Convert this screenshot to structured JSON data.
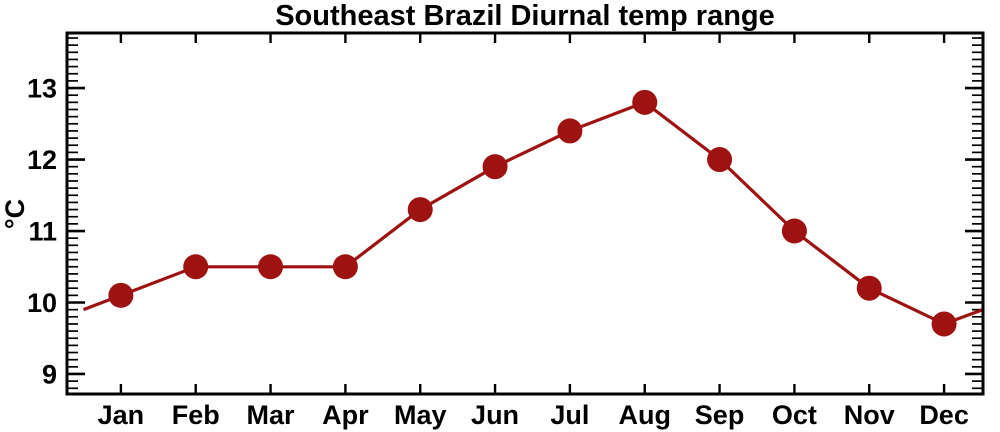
{
  "chart_data": {
    "type": "line",
    "title": "Southeast Brazil Diurnal temp range",
    "ylabel": "°C",
    "xlabel": "",
    "categories": [
      "Jan",
      "Feb",
      "Mar",
      "Apr",
      "May",
      "Jun",
      "Jul",
      "Aug",
      "Sep",
      "Oct",
      "Nov",
      "Dec"
    ],
    "x": [
      1,
      2,
      3,
      4,
      5,
      6,
      7,
      8,
      9,
      10,
      11,
      12
    ],
    "values": [
      10.1,
      10.5,
      10.5,
      10.5,
      11.3,
      11.9,
      12.4,
      12.8,
      12.0,
      11.0,
      10.2,
      9.7
    ],
    "edge_extension": {
      "left_x": 0.5,
      "left_value": 9.9,
      "right_x": 12.52,
      "right_value": 9.9
    },
    "xlim": [
      0.28,
      12.52
    ],
    "ylim": [
      8.72,
      13.77
    ],
    "yticks_major": [
      9,
      10,
      11,
      12,
      13
    ],
    "ytick_minor_step": 0.1,
    "grid": false,
    "legend": "none",
    "marker": "filled-circle",
    "line_color": "#9e1212",
    "marker_color": "#9e1212",
    "axis_color": "#000000",
    "background_color": "#ffffff"
  }
}
